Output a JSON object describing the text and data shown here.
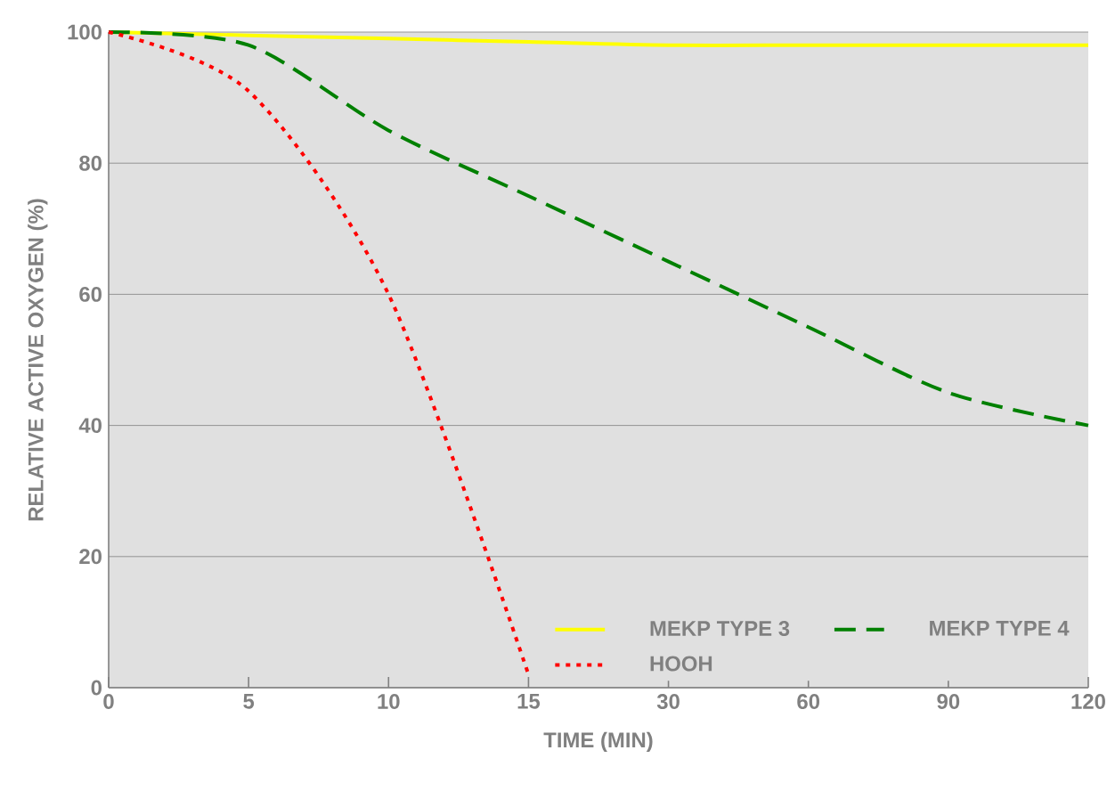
{
  "chart_data": {
    "type": "line",
    "xlabel": "TIME (MIN)",
    "ylabel": "RELATIVE ACTIVE OXYGEN (%)",
    "categories": [
      "0",
      "5",
      "10",
      "15",
      "30",
      "60",
      "90",
      "120"
    ],
    "series": [
      {
        "name": "MEKP TYPE 3",
        "color": "#ffff00",
        "line_style": "solid",
        "values": [
          100,
          99.5,
          99,
          98.5,
          98,
          98,
          98,
          98
        ]
      },
      {
        "name": "MEKP TYPE 4",
        "color": "#008000",
        "line_style": "dashed",
        "values": [
          100,
          98,
          85,
          75,
          65,
          55,
          45,
          40
        ]
      },
      {
        "name": "HOOH",
        "color": "#ff0000",
        "line_style": "dotted",
        "values": [
          100,
          91,
          60,
          2,
          null,
          null,
          null,
          null
        ]
      }
    ],
    "ylim": [
      0,
      100
    ],
    "yticks": [
      0,
      20,
      40,
      60,
      80,
      100
    ],
    "grid": "y",
    "legend": "bottom right"
  }
}
